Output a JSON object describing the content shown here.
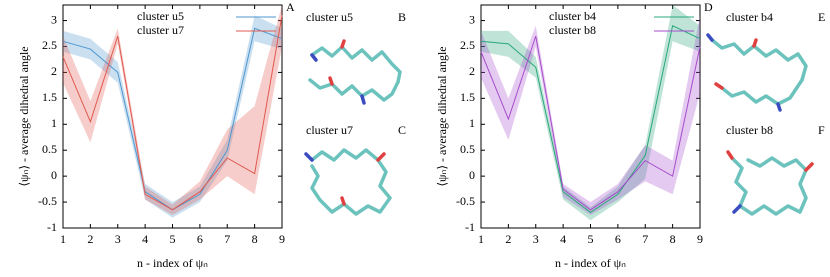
{
  "chart_data": [
    {
      "type": "line",
      "xlabel": "n - index of ψₙ",
      "ylabel": "⟨ψₙ⟩ - average dihedral angle",
      "xlim": [
        1,
        9
      ],
      "ylim": [
        -1,
        3.3
      ],
      "xticks": [
        1,
        2,
        3,
        4,
        5,
        6,
        7,
        8,
        9
      ],
      "yticks": [
        -1,
        -0.5,
        0,
        0.5,
        1,
        1.5,
        2,
        2.5,
        3
      ],
      "x": [
        1,
        2,
        3,
        4,
        5,
        6,
        7,
        8,
        9
      ],
      "legend": "upper center",
      "series": [
        {
          "name": "cluster u5",
          "color": "#4f97cf",
          "values": [
            2.6,
            2.45,
            2.0,
            -0.3,
            -0.65,
            -0.35,
            0.5,
            2.85,
            2.65
          ],
          "lower": [
            2.4,
            2.25,
            1.8,
            -0.45,
            -0.8,
            -0.5,
            0.3,
            2.6,
            2.45
          ],
          "upper": [
            2.8,
            2.65,
            2.2,
            -0.15,
            -0.5,
            -0.2,
            0.7,
            3.1,
            2.85
          ]
        },
        {
          "name": "cluster u7",
          "color": "#e05a50",
          "values": [
            2.3,
            1.05,
            2.7,
            -0.35,
            -0.65,
            -0.3,
            0.35,
            0.05,
            3.1
          ],
          "lower": [
            1.8,
            0.65,
            2.55,
            -0.45,
            -0.75,
            -0.45,
            0.0,
            -0.35,
            2.5
          ],
          "upper": [
            2.7,
            1.45,
            2.85,
            -0.2,
            -0.55,
            -0.1,
            0.9,
            1.35,
            3.3
          ]
        }
      ],
      "annotations": [
        "A",
        "B",
        "C"
      ],
      "structures": [
        "cluster u5",
        "cluster u7"
      ]
    },
    {
      "type": "line",
      "xlabel": "n - index of ψₙ",
      "ylabel": "⟨ψₙ⟩ - average dihedral angle",
      "xlim": [
        1,
        9
      ],
      "ylim": [
        -1,
        3.3
      ],
      "xticks": [
        1,
        2,
        3,
        4,
        5,
        6,
        7,
        8,
        9
      ],
      "yticks": [
        -1,
        -0.5,
        0,
        0.5,
        1,
        1.5,
        2,
        2.5,
        3
      ],
      "x": [
        1,
        2,
        3,
        4,
        5,
        6,
        7,
        8,
        9
      ],
      "legend": "upper center",
      "series": [
        {
          "name": "cluster b4",
          "color": "#2aa77a",
          "values": [
            2.6,
            2.55,
            2.1,
            -0.3,
            -0.7,
            -0.35,
            0.4,
            2.9,
            2.65
          ],
          "lower": [
            2.4,
            2.3,
            1.9,
            -0.45,
            -0.85,
            -0.5,
            -0.05,
            2.6,
            2.4
          ],
          "upper": [
            2.8,
            2.8,
            2.3,
            -0.2,
            -0.6,
            -0.2,
            0.6,
            3.3,
            2.9
          ]
        },
        {
          "name": "cluster b8",
          "color": "#a64dcc",
          "values": [
            2.4,
            1.1,
            2.7,
            -0.25,
            -0.65,
            -0.3,
            0.3,
            0.0,
            2.5
          ],
          "lower": [
            1.9,
            0.7,
            2.5,
            -0.4,
            -0.75,
            -0.45,
            -0.1,
            -0.35,
            1.6
          ],
          "upper": [
            2.8,
            1.5,
            2.9,
            -0.15,
            -0.5,
            -0.15,
            0.6,
            0.3,
            3.1
          ]
        }
      ],
      "annotations": [
        "D",
        "E",
        "F"
      ],
      "structures": [
        "cluster b4",
        "cluster b8"
      ]
    }
  ]
}
